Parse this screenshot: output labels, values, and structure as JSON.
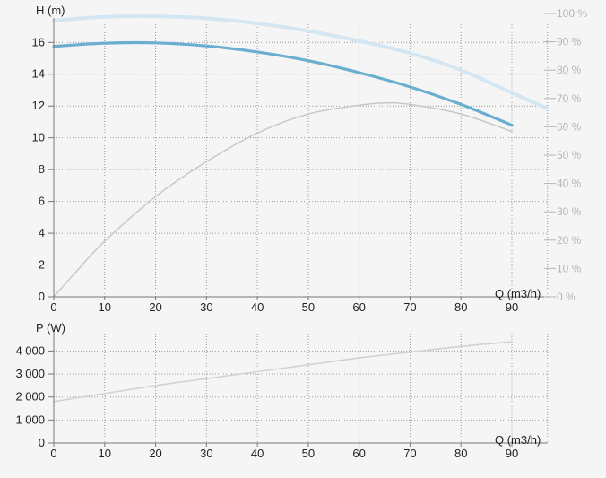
{
  "chart_data": [
    {
      "type": "line",
      "title": "",
      "ylabel": "H (m)",
      "xlabel": "Q (m3/h)",
      "xlim": [
        0,
        97
      ],
      "ylim": [
        0,
        17.2
      ],
      "x_ticks": [
        "0",
        "10",
        "20",
        "30",
        "40",
        "50",
        "60",
        "70",
        "80",
        "90"
      ],
      "y_ticks": [
        "0",
        "2",
        "4",
        "6",
        "8",
        "10",
        "12",
        "14",
        "16"
      ],
      "y2lim": [
        0,
        100
      ],
      "y2_ticks": [
        "0 %",
        "10 %",
        "20 %",
        "30 %",
        "40 %",
        "50 %",
        "60 %",
        "70 %",
        "80 %",
        "90 %",
        "100 %"
      ],
      "grid": true,
      "series": [
        {
          "color": "#6aaed0",
          "axis": "left",
          "width": 3.2,
          "x": [
            0,
            10,
            20,
            30,
            40,
            50,
            60,
            70,
            80,
            90
          ],
          "y": [
            15.75,
            15.95,
            15.97,
            15.78,
            15.4,
            14.85,
            14.1,
            13.2,
            12.1,
            10.8
          ]
        },
        {
          "color": "#c8c8c8",
          "axis": "left",
          "width": 1.5,
          "x": [
            0,
            5,
            10,
            20,
            30,
            40,
            50,
            60,
            65,
            70,
            80,
            90
          ],
          "y": [
            0,
            1.8,
            3.5,
            6.3,
            8.5,
            10.3,
            11.5,
            12.05,
            12.2,
            12.1,
            11.5,
            10.4
          ]
        },
        {
          "color": "#d4e6f2",
          "axis": "right",
          "width": 4,
          "dashed": true,
          "x": [
            0,
            10,
            20,
            30,
            40,
            50,
            60,
            70,
            80,
            90,
            97
          ],
          "y": [
            97.5,
            98.8,
            99,
            98.3,
            96.5,
            93.8,
            90.3,
            86,
            80,
            72,
            66.5
          ]
        }
      ]
    },
    {
      "type": "line",
      "title": "",
      "ylabel": "P (W)",
      "xlabel": "Q (m3/h)",
      "xlim": [
        0,
        97
      ],
      "ylim": [
        0,
        4600
      ],
      "x_ticks": [
        "0",
        "10",
        "20",
        "30",
        "40",
        "50",
        "60",
        "70",
        "80",
        "90"
      ],
      "y_ticks": [
        "0",
        "1 000",
        "2 000",
        "3 000",
        "4 000"
      ],
      "grid": true,
      "series": [
        {
          "color": "#d2d2d2",
          "axis": "left",
          "width": 1.6,
          "x": [
            0,
            10,
            20,
            30,
            40,
            50,
            60,
            70,
            80,
            90
          ],
          "y": [
            1800,
            2150,
            2500,
            2800,
            3100,
            3400,
            3700,
            3950,
            4200,
            4400
          ]
        }
      ]
    }
  ]
}
